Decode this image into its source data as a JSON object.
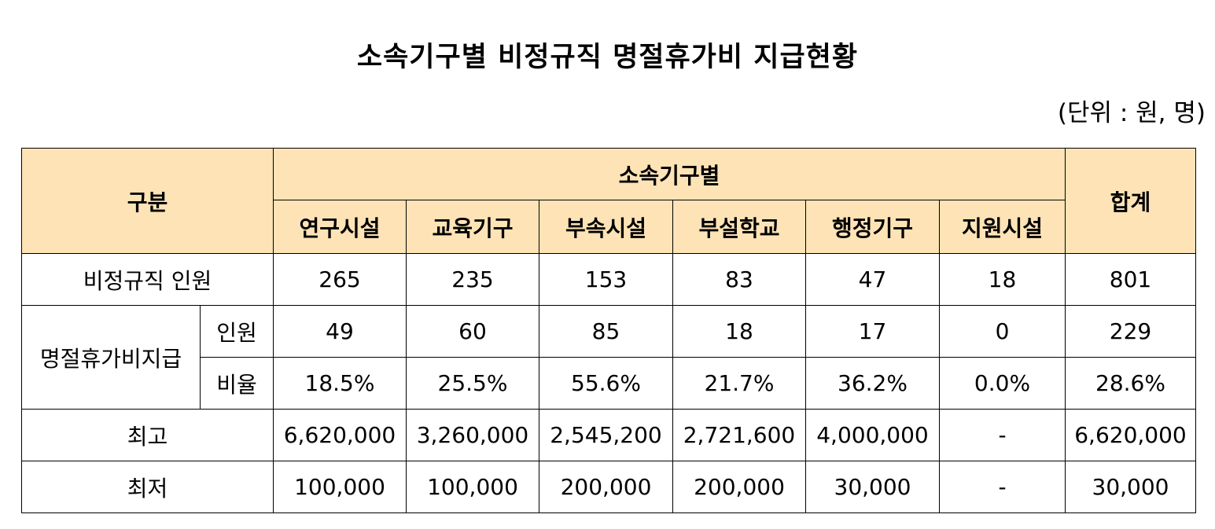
{
  "title": "소속기구별 비정규직 명절휴가비 지급현황",
  "unit": "(단위 : 원, 명)",
  "colors": {
    "header_bg": "#fde3b6",
    "border": "#000000"
  },
  "table": {
    "header": {
      "category": "구분",
      "group": "소속기구별",
      "total": "합계",
      "columns": [
        "연구시설",
        "교육기구",
        "부속시설",
        "부설학교",
        "행정기구",
        "지원시설"
      ]
    },
    "rows": {
      "staff": {
        "label": "비정규직 인원",
        "values": [
          "265",
          "235",
          "153",
          "83",
          "47",
          "18"
        ],
        "total": "801"
      },
      "payment": {
        "label": "명절휴가비지급",
        "count": {
          "label": "인원",
          "values": [
            "49",
            "60",
            "85",
            "18",
            "17",
            "0"
          ],
          "total": "229"
        },
        "ratio": {
          "label": "비율",
          "values": [
            "18.5%",
            "25.5%",
            "55.6%",
            "21.7%",
            "36.2%",
            "0.0%"
          ],
          "total": "28.6%"
        }
      },
      "max": {
        "label": "최고",
        "values": [
          "6,620,000",
          "3,260,000",
          "2,545,200",
          "2,721,600",
          "4,000,000",
          "-"
        ],
        "total": "6,620,000"
      },
      "min": {
        "label": "최저",
        "values": [
          "100,000",
          "100,000",
          "200,000",
          "200,000",
          "30,000",
          "-"
        ],
        "total": "30,000"
      }
    }
  }
}
